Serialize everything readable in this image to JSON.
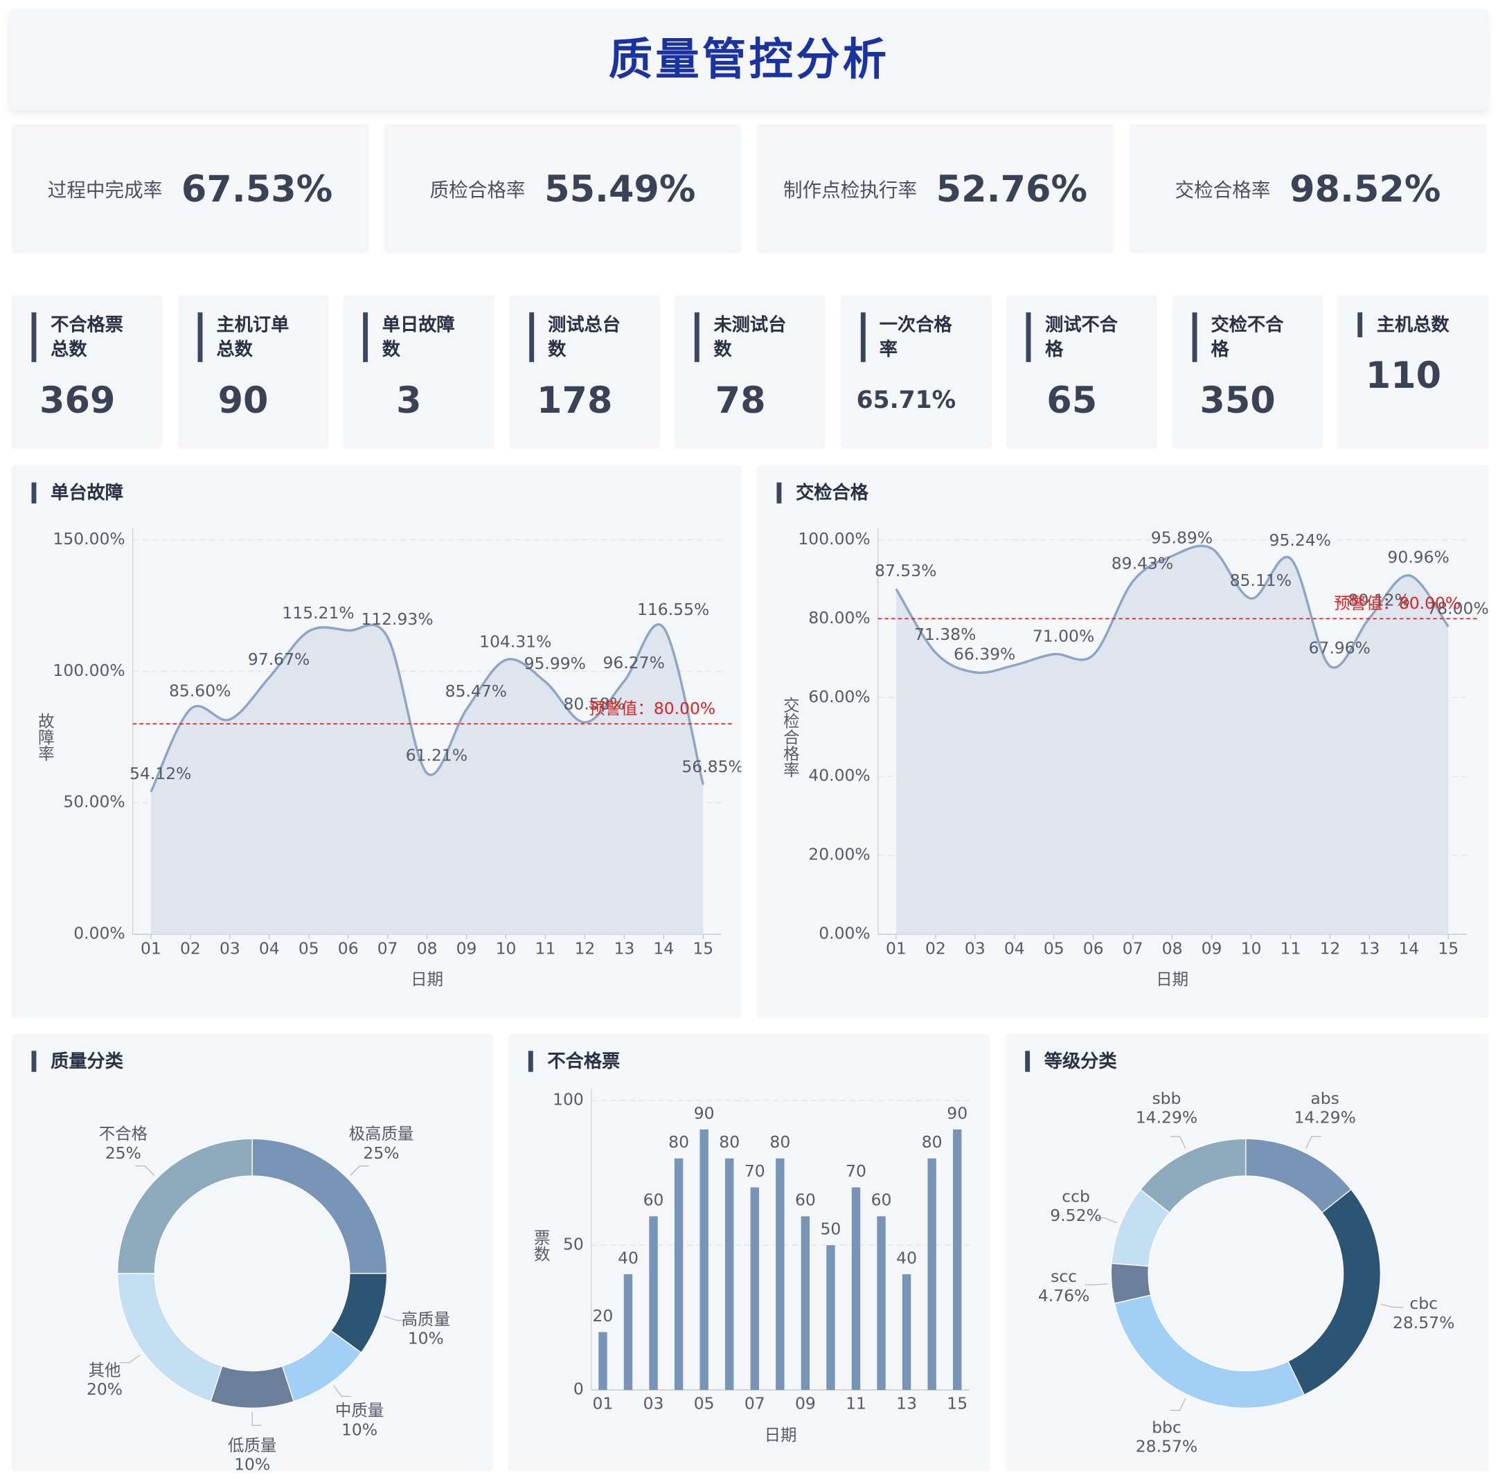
{
  "header": {
    "title": "质量管控分析"
  },
  "kpis": [
    {
      "label": "过程中完成率",
      "value": "67.53%"
    },
    {
      "label": "质检合格率",
      "value": "55.49%"
    },
    {
      "label": "制作点检执行率",
      "value": "52.76%"
    },
    {
      "label": "交检合格率",
      "value": "98.52%"
    }
  ],
  "stats": [
    {
      "label": "不合格票总数",
      "value": 369
    },
    {
      "label": "主机订单总数",
      "value": 90
    },
    {
      "label": "单日故障数",
      "value": 3
    },
    {
      "label": "测试总台数",
      "value": 178
    },
    {
      "label": "未测试台数",
      "value": 78
    },
    {
      "label": "一次合格率",
      "value": "65.71%"
    },
    {
      "label": "测试不合格",
      "value": 65
    },
    {
      "label": "交检不合格",
      "value": 350
    },
    {
      "label": "主机总数",
      "value": 110
    }
  ],
  "chart_data": [
    {
      "type": "line",
      "title": "单台故障",
      "x_label": "日期",
      "y_label": "故障率",
      "categories": [
        "01",
        "02",
        "03",
        "04",
        "05",
        "06",
        "07",
        "08",
        "09",
        "10",
        "11",
        "12",
        "13",
        "14",
        "15"
      ],
      "values": [
        54.12,
        85.6,
        81.7,
        97.67,
        115.21,
        115.5,
        112.93,
        61.21,
        85.47,
        104.31,
        95.99,
        80.58,
        96.27,
        116.55,
        56.85
      ],
      "value_labels": [
        "54.12%",
        "85.60%",
        null,
        "97.67%",
        "115.21%",
        null,
        "112.93%",
        "61.21%",
        "85.47%",
        "104.31%",
        "95.99%",
        "80.58%",
        "96.27%",
        "116.55%",
        "56.85%"
      ],
      "ylim": [
        0,
        150
      ],
      "yticks": [
        {
          "value": 0,
          "label": "0.00%"
        },
        {
          "value": 50,
          "label": "50.00%"
        },
        {
          "value": 100,
          "label": "100.00%"
        },
        {
          "value": 150,
          "label": "150.00%"
        }
      ],
      "grid": true,
      "color": "#8ea6c4",
      "area_color": "#dfe5ee",
      "threshold": {
        "value": 80,
        "label": "预警值：80.00%",
        "color": "#e02020"
      }
    },
    {
      "type": "line",
      "title": "交检合格",
      "x_label": "日期",
      "y_label": "交检合格率",
      "categories": [
        "01",
        "02",
        "03",
        "04",
        "05",
        "06",
        "07",
        "08",
        "09",
        "10",
        "11",
        "12",
        "13",
        "14",
        "15"
      ],
      "values": [
        87.53,
        71.38,
        66.39,
        68.2,
        71.0,
        70.8,
        89.43,
        95.89,
        97.8,
        85.11,
        95.24,
        67.96,
        80.12,
        90.96,
        78.0
      ],
      "value_labels": [
        "87.53%",
        "71.38%",
        "66.39%",
        null,
        "71.00%",
        null,
        "89.43%",
        "95.89%",
        null,
        "85.11%",
        "95.24%",
        "67.96%",
        "80.12%",
        "90.96%",
        "78.00%"
      ],
      "ylim": [
        0,
        100
      ],
      "yticks": [
        {
          "value": 0,
          "label": "0.00%"
        },
        {
          "value": 20,
          "label": "20.00%"
        },
        {
          "value": 40,
          "label": "40.00%"
        },
        {
          "value": 60,
          "label": "60.00%"
        },
        {
          "value": 80,
          "label": "80.00%"
        },
        {
          "value": 100,
          "label": "100.00%"
        }
      ],
      "grid": true,
      "color": "#8ea6c4",
      "area_color": "#dfe5ee",
      "threshold": {
        "value": 80,
        "label": "预警值：80.00%",
        "color": "#e02020"
      }
    },
    {
      "type": "pie",
      "title": "质量分类",
      "categories": [
        "极高质量",
        "高质量",
        "中质量",
        "低质量",
        "其他",
        "不合格"
      ],
      "values": [
        25,
        10,
        10,
        10,
        20,
        25
      ],
      "value_labels": [
        "25%",
        "10%",
        "10%",
        "10%",
        "20%",
        "25%"
      ],
      "colors": [
        "#7895b8",
        "#2c5473",
        "#a2cff5",
        "#6b7f9c",
        "#c4def2",
        "#8eaabd"
      ]
    },
    {
      "type": "bar",
      "title": "不合格票",
      "x_label": "日期",
      "y_label": "票数",
      "categories": [
        "01",
        null,
        "03",
        null,
        "05",
        null,
        "07",
        null,
        "09",
        null,
        "11",
        null,
        "13",
        null,
        "15"
      ],
      "values": [
        20,
        40,
        60,
        80,
        90,
        80,
        70,
        80,
        60,
        50,
        70,
        60,
        40,
        80,
        90
      ],
      "ylim": [
        0,
        100
      ],
      "yticks": [
        0,
        50,
        100
      ],
      "grid": true,
      "color": "#7895b8"
    },
    {
      "type": "pie",
      "title": "等级分类",
      "categories": [
        "abs",
        "cbc",
        "bbc",
        "scc",
        "ccb",
        "sbb"
      ],
      "values": [
        14.29,
        28.57,
        28.57,
        4.76,
        9.52,
        14.29
      ],
      "value_labels": [
        "14.29%",
        "28.57%",
        "28.57%",
        "4.76%",
        "9.52%",
        "14.29%"
      ],
      "colors": [
        "#7895b8",
        "#2c5473",
        "#a2cff5",
        "#6b7f9c",
        "#c4def2",
        "#8eaabd"
      ]
    }
  ]
}
